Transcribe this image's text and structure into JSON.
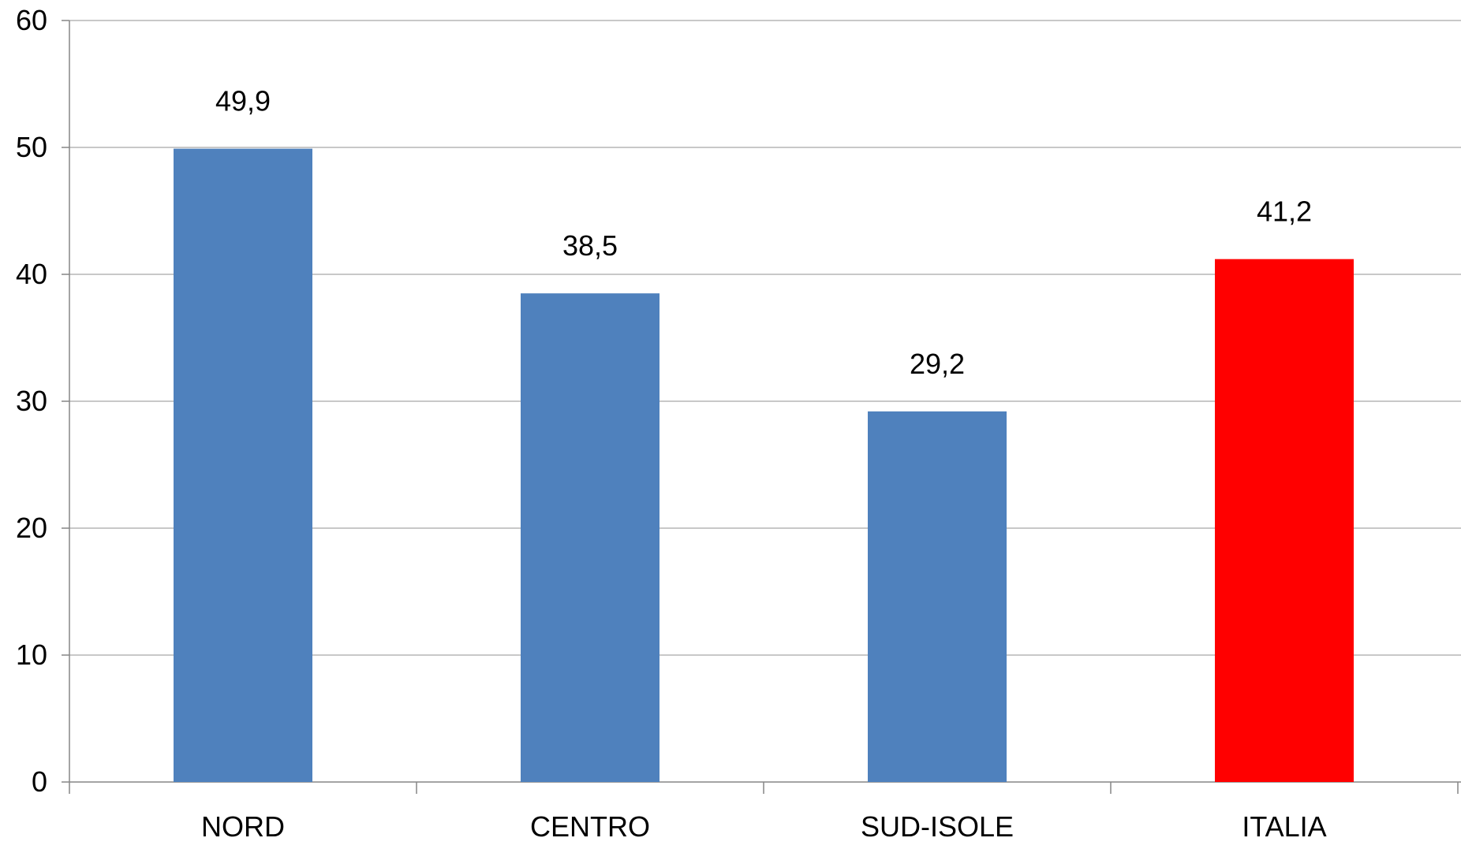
{
  "chart_data": {
    "type": "bar",
    "title": "",
    "xlabel": "",
    "ylabel": "",
    "categories": [
      "NORD",
      "CENTRO",
      "SUD-ISOLE",
      "ITALIA"
    ],
    "values": [
      49.9,
      38.5,
      29.2,
      41.2
    ],
    "value_labels": [
      "49,9",
      "38,5",
      "29,2",
      "41,2"
    ],
    "bar_colors": [
      "#4F81BD",
      "#4F81BD",
      "#4F81BD",
      "#FF0000"
    ],
    "ylim": [
      0,
      60
    ],
    "yticks": [
      0,
      10,
      20,
      30,
      40,
      50,
      60
    ],
    "ytick_labels": [
      "0",
      "10",
      "20",
      "30",
      "40",
      "50",
      "60"
    ],
    "grid": true,
    "gridline_color": "#A6A6A6",
    "axis_color": "#868686",
    "legend": "none"
  }
}
